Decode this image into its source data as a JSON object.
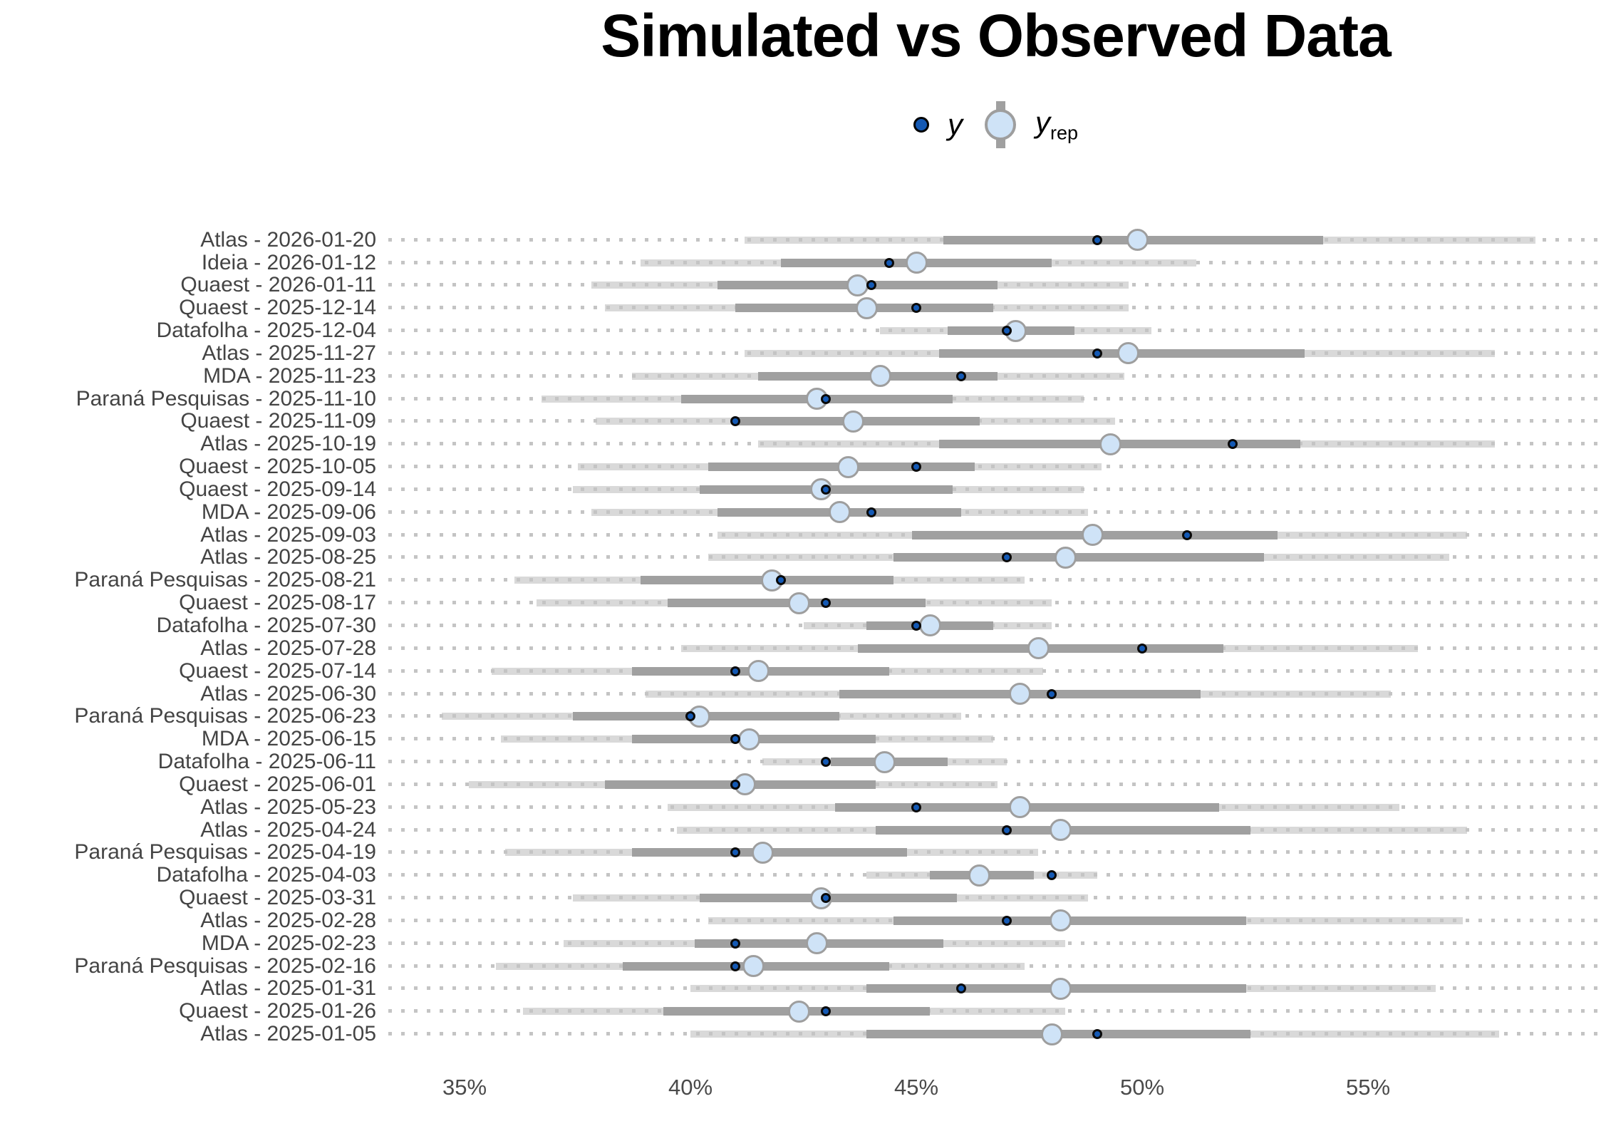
{
  "title": "Simulated vs Observed Data",
  "legend": {
    "y_label": "y",
    "yrep_label": "y",
    "yrep_sub": "rep"
  },
  "colors": {
    "y_point_fill": "#1459b4",
    "y_point_ring": "#0a0a0a",
    "yrep_fill": "#cfe3f7",
    "yrep_ring": "#9e9e9e",
    "inner_interval": "#a0a0a0",
    "outer_interval": "#d9d9d9",
    "grid_dot": "#c4c4c4",
    "title_color": "#000000",
    "axis_text": "#4a4a4a"
  },
  "x_axis": {
    "tick_labels": [
      "35%",
      "40%",
      "45%",
      "50%",
      "55%"
    ],
    "tick_values": [
      35,
      40,
      45,
      50,
      55
    ]
  },
  "chart_data": {
    "type": "interval",
    "title": "Simulated vs Observed Data",
    "xlabel": "",
    "ylabel": "",
    "xlim": [
      33.3,
      60.2
    ],
    "grid": "dotted-horizontal",
    "legend_position": "top-center",
    "series_meaning": {
      "y": "observed value (dark blue dot)",
      "yrep_median": "posterior predictive median (light blue circle)",
      "inner": "inner predictive interval (dark gray bar), percent",
      "outer": "outer predictive interval (light gray bar), percent"
    },
    "rows": [
      {
        "label": "Atlas - 2026-01-20",
        "y": 49.0,
        "yrep_median": 49.9,
        "inner": [
          45.6,
          54.0
        ],
        "outer": [
          41.2,
          58.7
        ]
      },
      {
        "label": "Ideia - 2026-01-12",
        "y": 44.4,
        "yrep_median": 45.0,
        "inner": [
          42.0,
          48.0
        ],
        "outer": [
          38.9,
          51.2
        ]
      },
      {
        "label": "Quaest - 2026-01-11",
        "y": 44.0,
        "yrep_median": 43.7,
        "inner": [
          40.6,
          46.8
        ],
        "outer": [
          37.8,
          49.7
        ]
      },
      {
        "label": "Quaest - 2025-12-14",
        "y": 45.0,
        "yrep_median": 43.9,
        "inner": [
          41.0,
          46.7
        ],
        "outer": [
          38.1,
          49.7
        ]
      },
      {
        "label": "Datafolha - 2025-12-04",
        "y": 47.0,
        "yrep_median": 47.2,
        "inner": [
          45.7,
          48.5
        ],
        "outer": [
          44.2,
          50.2
        ]
      },
      {
        "label": "Atlas - 2025-11-27",
        "y": 49.0,
        "yrep_median": 49.7,
        "inner": [
          45.5,
          53.6
        ],
        "outer": [
          41.2,
          57.8
        ]
      },
      {
        "label": "MDA - 2025-11-23",
        "y": 46.0,
        "yrep_median": 44.2,
        "inner": [
          41.5,
          46.8
        ],
        "outer": [
          38.7,
          49.6
        ]
      },
      {
        "label": "Paraná Pesquisas - 2025-11-10",
        "y": 43.0,
        "yrep_median": 42.8,
        "inner": [
          39.8,
          45.8
        ],
        "outer": [
          36.7,
          48.7
        ]
      },
      {
        "label": "Quaest - 2025-11-09",
        "y": 41.0,
        "yrep_median": 43.6,
        "inner": [
          41.0,
          46.4
        ],
        "outer": [
          37.9,
          49.4
        ]
      },
      {
        "label": "Atlas - 2025-10-19",
        "y": 52.0,
        "yrep_median": 49.3,
        "inner": [
          45.5,
          53.5
        ],
        "outer": [
          41.5,
          57.8
        ]
      },
      {
        "label": "Quaest - 2025-10-05",
        "y": 45.0,
        "yrep_median": 43.5,
        "inner": [
          40.4,
          46.3
        ],
        "outer": [
          37.5,
          49.1
        ]
      },
      {
        "label": "Quaest - 2025-09-14",
        "y": 43.0,
        "yrep_median": 42.9,
        "inner": [
          40.2,
          45.8
        ],
        "outer": [
          37.4,
          48.7
        ]
      },
      {
        "label": "MDA - 2025-09-06",
        "y": 44.0,
        "yrep_median": 43.3,
        "inner": [
          40.6,
          46.0
        ],
        "outer": [
          37.8,
          48.8
        ]
      },
      {
        "label": "Atlas - 2025-09-03",
        "y": 51.0,
        "yrep_median": 48.9,
        "inner": [
          44.9,
          53.0
        ],
        "outer": [
          40.6,
          57.2
        ]
      },
      {
        "label": "Atlas - 2025-08-25",
        "y": 47.0,
        "yrep_median": 48.3,
        "inner": [
          44.5,
          52.7
        ],
        "outer": [
          40.4,
          56.8
        ]
      },
      {
        "label": "Paraná Pesquisas - 2025-08-21",
        "y": 42.0,
        "yrep_median": 41.8,
        "inner": [
          38.9,
          44.5
        ],
        "outer": [
          36.1,
          47.4
        ]
      },
      {
        "label": "Quaest - 2025-08-17",
        "y": 43.0,
        "yrep_median": 42.4,
        "inner": [
          39.5,
          45.2
        ],
        "outer": [
          36.6,
          48.0
        ]
      },
      {
        "label": "Datafolha - 2025-07-30",
        "y": 45.0,
        "yrep_median": 45.3,
        "inner": [
          43.9,
          46.7
        ],
        "outer": [
          42.5,
          48.0
        ]
      },
      {
        "label": "Atlas - 2025-07-28",
        "y": 50.0,
        "yrep_median": 47.7,
        "inner": [
          43.7,
          51.8
        ],
        "outer": [
          39.8,
          56.1
        ]
      },
      {
        "label": "Quaest - 2025-07-14",
        "y": 41.0,
        "yrep_median": 41.5,
        "inner": [
          38.7,
          44.4
        ],
        "outer": [
          35.6,
          47.8
        ]
      },
      {
        "label": "Atlas - 2025-06-30",
        "y": 48.0,
        "yrep_median": 47.3,
        "inner": [
          43.3,
          51.3
        ],
        "outer": [
          39.0,
          55.5
        ]
      },
      {
        "label": "Paraná Pesquisas - 2025-06-23",
        "y": 40.0,
        "yrep_median": 40.2,
        "inner": [
          37.4,
          43.3
        ],
        "outer": [
          34.5,
          46.0
        ]
      },
      {
        "label": "MDA - 2025-06-15",
        "y": 41.0,
        "yrep_median": 41.3,
        "inner": [
          38.7,
          44.1
        ],
        "outer": [
          35.8,
          46.7
        ]
      },
      {
        "label": "Datafolha - 2025-06-11",
        "y": 43.0,
        "yrep_median": 44.3,
        "inner": [
          43.1,
          45.7
        ],
        "outer": [
          41.6,
          47.0
        ]
      },
      {
        "label": "Quaest - 2025-06-01",
        "y": 41.0,
        "yrep_median": 41.2,
        "inner": [
          38.1,
          44.1
        ],
        "outer": [
          35.1,
          46.8
        ]
      },
      {
        "label": "Atlas - 2025-05-23",
        "y": 45.0,
        "yrep_median": 47.3,
        "inner": [
          43.2,
          51.7
        ],
        "outer": [
          39.5,
          55.7
        ]
      },
      {
        "label": "Atlas - 2025-04-24",
        "y": 47.0,
        "yrep_median": 48.2,
        "inner": [
          44.1,
          52.4
        ],
        "outer": [
          39.7,
          57.2
        ]
      },
      {
        "label": "Paraná Pesquisas - 2025-04-19",
        "y": 41.0,
        "yrep_median": 41.6,
        "inner": [
          38.7,
          44.8
        ],
        "outer": [
          35.9,
          47.7
        ]
      },
      {
        "label": "Datafolha - 2025-04-03",
        "y": 48.0,
        "yrep_median": 46.4,
        "inner": [
          45.3,
          47.6
        ],
        "outer": [
          43.9,
          49.0
        ]
      },
      {
        "label": "Quaest - 2025-03-31",
        "y": 43.0,
        "yrep_median": 42.9,
        "inner": [
          40.2,
          45.9
        ],
        "outer": [
          37.4,
          48.8
        ]
      },
      {
        "label": "Atlas - 2025-02-28",
        "y": 47.0,
        "yrep_median": 48.2,
        "inner": [
          44.5,
          52.3
        ],
        "outer": [
          40.4,
          57.1
        ]
      },
      {
        "label": "MDA - 2025-02-23",
        "y": 41.0,
        "yrep_median": 42.8,
        "inner": [
          40.1,
          45.6
        ],
        "outer": [
          37.2,
          48.3
        ]
      },
      {
        "label": "Paraná Pesquisas - 2025-02-16",
        "y": 41.0,
        "yrep_median": 41.4,
        "inner": [
          38.5,
          44.4
        ],
        "outer": [
          35.7,
          47.4
        ]
      },
      {
        "label": "Atlas - 2025-01-31",
        "y": 46.0,
        "yrep_median": 48.2,
        "inner": [
          43.9,
          52.3
        ],
        "outer": [
          40.0,
          56.5
        ]
      },
      {
        "label": "Quaest - 2025-01-26",
        "y": 43.0,
        "yrep_median": 42.4,
        "inner": [
          39.4,
          45.3
        ],
        "outer": [
          36.3,
          48.3
        ]
      },
      {
        "label": "Atlas - 2025-01-05",
        "y": 49.0,
        "yrep_median": 48.0,
        "inner": [
          43.9,
          52.4
        ],
        "outer": [
          40.0,
          57.9
        ]
      }
    ]
  }
}
